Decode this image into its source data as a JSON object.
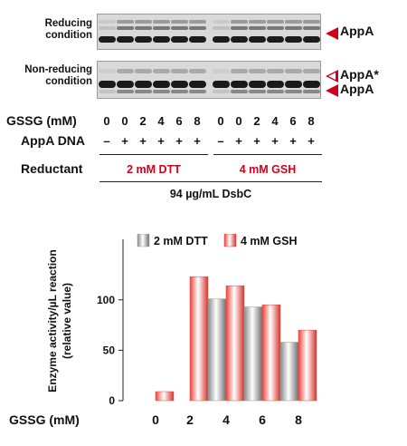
{
  "gel": {
    "top_panel_label": "Reducing\ncondition",
    "bottom_panel_label": "Non-reducing\ncondition",
    "appa_label": "AppA",
    "appa_star_label": "AppA*",
    "gssg_row_label": "GSSG (mM)",
    "gssg_values": [
      "0",
      "0",
      "2",
      "4",
      "6",
      "8",
      "0",
      "0",
      "2",
      "4",
      "6",
      "8"
    ],
    "dna_row_label": "AppA DNA",
    "dna_values": [
      "–",
      "+",
      "+",
      "+",
      "+",
      "+",
      "–",
      "+",
      "+",
      "+",
      "+",
      "+"
    ],
    "reductant_label": "Reductant",
    "reductant_dtt": "2 mM DTT",
    "reductant_gsh": "4 mM GSH",
    "dsbc_label": "94 µg/mL DsbC",
    "accent_red": "#d0021b"
  },
  "chart_data": {
    "type": "bar",
    "categories": [
      "0",
      "2",
      "4",
      "6",
      "8"
    ],
    "xlabel": "GSSG (mM)",
    "ylabel": "Enzyme activity/µL reaction\n(relative value)",
    "ylim": [
      0,
      160
    ],
    "yticks": [
      0,
      50,
      100
    ],
    "series": [
      {
        "name": "2 mM DTT",
        "values": [
          0,
          0,
          101,
          93,
          58
        ],
        "color": "#9a9a9a"
      },
      {
        "name": "4 mM GSH",
        "values": [
          9,
          123,
          114,
          95,
          70
        ],
        "color": "#e8453c"
      }
    ],
    "legend_position": "top"
  }
}
